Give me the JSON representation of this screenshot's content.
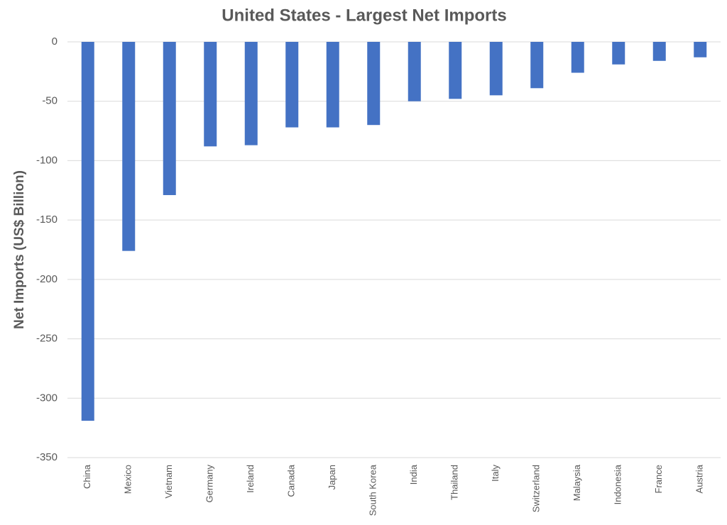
{
  "chart_data": {
    "type": "bar",
    "title": "United States  - Largest Net Imports",
    "y_label": "Net Imports (US$ Billion)",
    "categories": [
      "China",
      "Mexico",
      "Vietnam",
      "Germany",
      "Ireland",
      "Canada",
      "Japan",
      "South Korea",
      "India",
      "Thailand",
      "Italy",
      "Switzerland",
      "Malaysia",
      "Indonesia",
      "France",
      "Austria"
    ],
    "values": [
      -319,
      -176,
      -129,
      -88,
      -87,
      -72,
      -72,
      -70,
      -50,
      -48,
      -45,
      -39,
      -26,
      -19,
      -16,
      -13
    ],
    "color": "#4472c4",
    "ylim": [
      -350,
      0
    ],
    "yticks": [
      0,
      -50,
      -100,
      -150,
      -200,
      -250,
      -300,
      -350
    ],
    "grid": true
  }
}
